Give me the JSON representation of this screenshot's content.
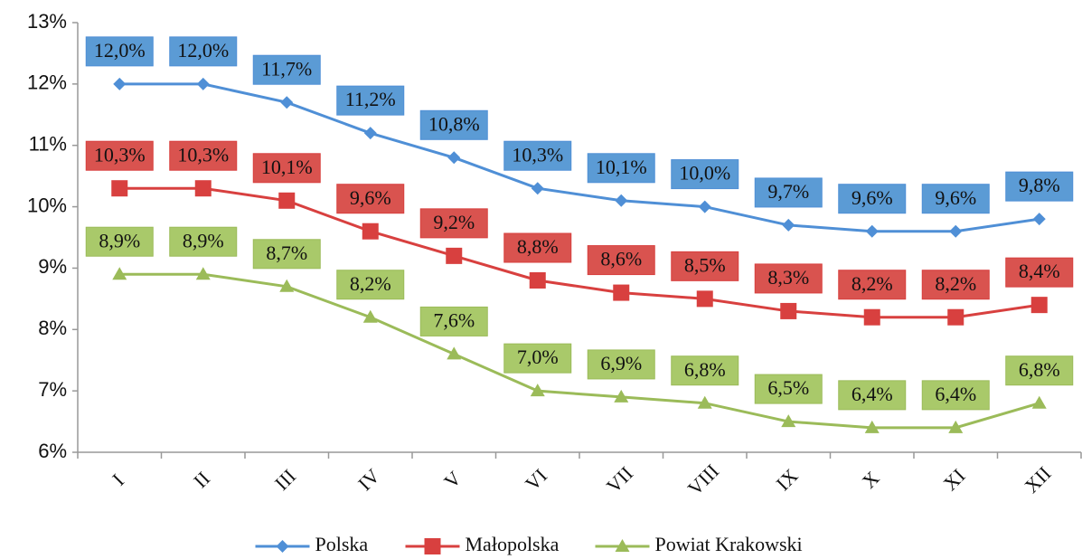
{
  "chart_data": {
    "type": "line",
    "categories": [
      "I",
      "II",
      "III",
      "IV",
      "V",
      "VI",
      "VII",
      "VIII",
      "IX",
      "X",
      "XI",
      "XII"
    ],
    "series": [
      {
        "name": "Polska",
        "color": "#4f8fd6",
        "label_color": "#5b9bd5",
        "marker": "diamond",
        "values": [
          12.0,
          12.0,
          11.7,
          11.2,
          10.8,
          10.3,
          10.1,
          10.0,
          9.7,
          9.6,
          9.6,
          9.8
        ],
        "value_labels": [
          "12,0%",
          "12,0%",
          "11,7%",
          "11,2%",
          "10,8%",
          "10,3%",
          "10,1%",
          "10,0%",
          "9,7%",
          "9,6%",
          "9,6%",
          "9,8%"
        ]
      },
      {
        "name": "Małopolska",
        "color": "#d8403f",
        "label_color": "#d9534f",
        "marker": "square",
        "values": [
          10.3,
          10.3,
          10.1,
          9.6,
          9.2,
          8.8,
          8.6,
          8.5,
          8.3,
          8.2,
          8.2,
          8.4
        ],
        "value_labels": [
          "10,3%",
          "10,3%",
          "10,1%",
          "9,6%",
          "9,2%",
          "8,8%",
          "8,6%",
          "8,5%",
          "8,3%",
          "8,2%",
          "8,2%",
          "8,4%"
        ]
      },
      {
        "name": "Powiat Krakowski",
        "color": "#9bbb59",
        "label_color": "#a9c96a",
        "marker": "triangle",
        "values": [
          8.9,
          8.9,
          8.7,
          8.2,
          7.6,
          7.0,
          6.9,
          6.8,
          6.5,
          6.4,
          6.4,
          6.8
        ],
        "value_labels": [
          "8,9%",
          "8,9%",
          "8,7%",
          "8,2%",
          "7,6%",
          "7,0%",
          "6,9%",
          "6,8%",
          "6,5%",
          "6,4%",
          "6,4%",
          "6,8%"
        ]
      }
    ],
    "ylim": [
      6,
      13
    ],
    "yticks": [
      {
        "value": 6,
        "label": "6%"
      },
      {
        "value": 7,
        "label": "7%"
      },
      {
        "value": 8,
        "label": "8%"
      },
      {
        "value": 9,
        "label": "9%"
      },
      {
        "value": 10,
        "label": "10%"
      },
      {
        "value": 11,
        "label": "11%"
      },
      {
        "value": 12,
        "label": "12%"
      },
      {
        "value": 13,
        "label": "13%"
      }
    ],
    "grid": false,
    "legend": "bottom"
  }
}
